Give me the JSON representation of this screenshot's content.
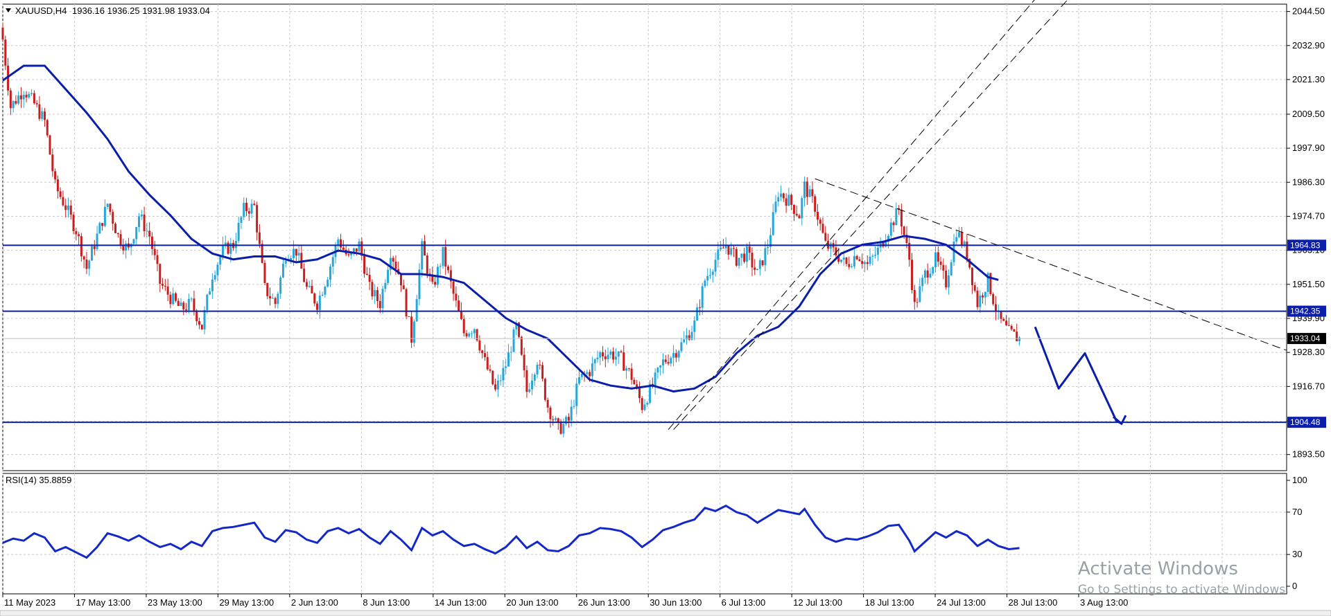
{
  "header": {
    "symbol": "XAUUSD,H4",
    "ohlc": "1936.16 1936.25 1931.98 1933.04",
    "dropdown_icon": "triangle-down-icon"
  },
  "rsi_header": "RSI(14) 35.8859",
  "watermark": {
    "line1": "Activate Windows",
    "line2": "Go to Settings to activate Windows."
  },
  "colors": {
    "bull": "#26a6d9",
    "bear": "#c81e1e",
    "ma": "#0a1eaa",
    "hline": "#0a1eaa",
    "rsi": "#1428c8",
    "grid": "#c8c8c8",
    "current_price_bg": "#000000",
    "level_tag_bg": "#0a1eaa"
  },
  "chart_data": [
    {
      "type": "candlestick",
      "title": "XAUUSD,H4",
      "ylim": [
        1888.0,
        2047.0
      ],
      "y_ticks": [
        "2044.50",
        "2032.90",
        "2021.30",
        "2009.50",
        "1997.90",
        "1986.30",
        "1974.70",
        "1963.10",
        "1951.50",
        "1939.90",
        "1928.30",
        "1916.70",
        "1904.90",
        "1893.50"
      ],
      "x_ticks": [
        "11 May 2023",
        "17 May 13:00",
        "23 May 13:00",
        "29 May 13:00",
        "2 Jun 13:00",
        "8 Jun 13:00",
        "14 Jun 13:00",
        "20 Jun 13:00",
        "26 Jun 13:00",
        "30 Jun 13:00",
        "6 Jul 13:00",
        "12 Jul 13:00",
        "18 Jul 13:00",
        "24 Jul 13:00",
        "28 Jul 13:00",
        "3 Aug 13:00"
      ],
      "close_path": [
        [
          0,
          2035
        ],
        [
          3,
          2012
        ],
        [
          8,
          2018
        ],
        [
          12,
          2013
        ],
        [
          16,
          2007
        ],
        [
          20,
          1985
        ],
        [
          24,
          1978
        ],
        [
          28,
          1970
        ],
        [
          32,
          1957
        ],
        [
          36,
          1968
        ],
        [
          40,
          1979
        ],
        [
          44,
          1968
        ],
        [
          48,
          1963
        ],
        [
          52,
          1975
        ],
        [
          56,
          1968
        ],
        [
          60,
          1952
        ],
        [
          64,
          1947
        ],
        [
          68,
          1943
        ],
        [
          72,
          1945
        ],
        [
          76,
          1937
        ],
        [
          80,
          1955
        ],
        [
          84,
          1963
        ],
        [
          88,
          1965
        ],
        [
          92,
          1977
        ],
        [
          96,
          1978
        ],
        [
          100,
          1950
        ],
        [
          104,
          1945
        ],
        [
          108,
          1962
        ],
        [
          112,
          1963
        ],
        [
          116,
          1950
        ],
        [
          120,
          1945
        ],
        [
          124,
          1955
        ],
        [
          128,
          1967
        ],
        [
          132,
          1960
        ],
        [
          136,
          1965
        ],
        [
          140,
          1950
        ],
        [
          144,
          1945
        ],
        [
          148,
          1963
        ],
        [
          152,
          1953
        ],
        [
          156,
          1933
        ],
        [
          160,
          1964
        ],
        [
          164,
          1950
        ],
        [
          168,
          1962
        ],
        [
          172,
          1948
        ],
        [
          176,
          1935
        ],
        [
          180,
          1937
        ],
        [
          184,
          1925
        ],
        [
          188,
          1915
        ],
        [
          192,
          1924
        ],
        [
          196,
          1937
        ],
        [
          200,
          1915
        ],
        [
          204,
          1926
        ],
        [
          208,
          1910
        ],
        [
          212,
          1902
        ],
        [
          216,
          1905
        ],
        [
          220,
          1919
        ],
        [
          224,
          1922
        ],
        [
          228,
          1928
        ],
        [
          232,
          1928
        ],
        [
          236,
          1926
        ],
        [
          240,
          1920
        ],
        [
          244,
          1910
        ],
        [
          248,
          1917
        ],
        [
          252,
          1925
        ],
        [
          256,
          1928
        ],
        [
          260,
          1932
        ],
        [
          264,
          1938
        ],
        [
          268,
          1953
        ],
        [
          272,
          1960
        ],
        [
          276,
          1965
        ],
        [
          280,
          1960
        ],
        [
          284,
          1962
        ],
        [
          288,
          1955
        ],
        [
          292,
          1965
        ],
        [
          296,
          1983
        ],
        [
          300,
          1980
        ],
        [
          304,
          1975
        ],
        [
          306,
          1985
        ],
        [
          310,
          1978
        ],
        [
          314,
          1965
        ],
        [
          318,
          1962
        ],
        [
          322,
          1958
        ],
        [
          326,
          1962
        ],
        [
          330,
          1958
        ],
        [
          334,
          1963
        ],
        [
          338,
          1970
        ],
        [
          342,
          1977
        ],
        [
          346,
          1960
        ],
        [
          348,
          1944
        ],
        [
          352,
          1955
        ],
        [
          356,
          1960
        ],
        [
          360,
          1952
        ],
        [
          364,
          1970
        ],
        [
          368,
          1962
        ],
        [
          372,
          1945
        ],
        [
          376,
          1953
        ],
        [
          380,
          1940
        ],
        [
          384,
          1935
        ],
        [
          388,
          1933
        ]
      ],
      "moving_average_path": [
        [
          0,
          2021
        ],
        [
          8,
          2026
        ],
        [
          16,
          2026
        ],
        [
          24,
          2018
        ],
        [
          32,
          2010
        ],
        [
          40,
          2001
        ],
        [
          48,
          1990
        ],
        [
          56,
          1982
        ],
        [
          64,
          1975
        ],
        [
          72,
          1967
        ],
        [
          80,
          1962
        ],
        [
          88,
          1960
        ],
        [
          96,
          1961
        ],
        [
          104,
          1961
        ],
        [
          112,
          1959
        ],
        [
          120,
          1960
        ],
        [
          128,
          1963
        ],
        [
          136,
          1962
        ],
        [
          144,
          1960
        ],
        [
          152,
          1955
        ],
        [
          160,
          1955
        ],
        [
          168,
          1954
        ],
        [
          176,
          1952
        ],
        [
          184,
          1946
        ],
        [
          192,
          1940
        ],
        [
          200,
          1936
        ],
        [
          208,
          1933
        ],
        [
          216,
          1926
        ],
        [
          224,
          1919
        ],
        [
          232,
          1917
        ],
        [
          240,
          1916
        ],
        [
          248,
          1917
        ],
        [
          256,
          1915
        ],
        [
          264,
          1916
        ],
        [
          272,
          1920
        ],
        [
          280,
          1928
        ],
        [
          288,
          1934
        ],
        [
          296,
          1937
        ],
        [
          304,
          1944
        ],
        [
          312,
          1955
        ],
        [
          320,
          1962
        ],
        [
          328,
          1965
        ],
        [
          336,
          1966
        ],
        [
          344,
          1968
        ],
        [
          352,
          1967
        ],
        [
          360,
          1965
        ],
        [
          368,
          1960
        ],
        [
          376,
          1954
        ],
        [
          380,
          1953
        ]
      ],
      "horizontal_levels": [
        {
          "value": 1964.83,
          "label": "1964.83"
        },
        {
          "value": 1942.35,
          "label": "1942.35"
        },
        {
          "value": 1904.48,
          "label": "1904.48"
        }
      ],
      "current_price": {
        "value": 1933.04,
        "label": "1933.04"
      },
      "channel_lines": [
        {
          "from": [
            254,
            1902
          ],
          "to": [
            400,
            2055
          ]
        },
        {
          "from": [
            256,
            1902
          ],
          "to": [
            410,
            2052
          ]
        }
      ],
      "trend_line": {
        "from": [
          310,
          1987.5
        ],
        "to": [
          490,
          1929
        ]
      },
      "forecast_path": [
        [
          394,
          1937
        ],
        [
          403,
          1916
        ],
        [
          413,
          1928
        ],
        [
          425,
          1905
        ],
        [
          427,
          1904
        ]
      ]
    },
    {
      "type": "line",
      "title": "RSI(14) 35.8859",
      "ylim": [
        0,
        100
      ],
      "y_ticks": [
        "100",
        "70",
        "30",
        "0"
      ],
      "series": [
        {
          "name": "RSI(14)",
          "values": []
        }
      ],
      "path": [
        [
          0,
          41
        ],
        [
          4,
          45
        ],
        [
          8,
          43
        ],
        [
          12,
          50
        ],
        [
          16,
          46
        ],
        [
          20,
          33
        ],
        [
          24,
          37
        ],
        [
          28,
          32
        ],
        [
          32,
          27
        ],
        [
          36,
          37
        ],
        [
          40,
          50
        ],
        [
          44,
          47
        ],
        [
          48,
          43
        ],
        [
          52,
          48
        ],
        [
          56,
          42
        ],
        [
          60,
          37
        ],
        [
          64,
          40
        ],
        [
          68,
          35
        ],
        [
          72,
          42
        ],
        [
          76,
          38
        ],
        [
          80,
          52
        ],
        [
          84,
          55
        ],
        [
          88,
          56
        ],
        [
          92,
          58
        ],
        [
          96,
          60
        ],
        [
          100,
          46
        ],
        [
          104,
          42
        ],
        [
          108,
          53
        ],
        [
          112,
          51
        ],
        [
          116,
          44
        ],
        [
          120,
          41
        ],
        [
          124,
          52
        ],
        [
          128,
          55
        ],
        [
          132,
          50
        ],
        [
          136,
          54
        ],
        [
          140,
          46
        ],
        [
          144,
          40
        ],
        [
          148,
          52
        ],
        [
          152,
          44
        ],
        [
          156,
          34
        ],
        [
          160,
          55
        ],
        [
          164,
          48
        ],
        [
          168,
          52
        ],
        [
          172,
          44
        ],
        [
          176,
          38
        ],
        [
          180,
          40
        ],
        [
          184,
          35
        ],
        [
          188,
          31
        ],
        [
          192,
          37
        ],
        [
          196,
          47
        ],
        [
          200,
          36
        ],
        [
          204,
          42
        ],
        [
          208,
          34
        ],
        [
          212,
          33
        ],
        [
          216,
          38
        ],
        [
          220,
          48
        ],
        [
          224,
          50
        ],
        [
          228,
          55
        ],
        [
          232,
          54
        ],
        [
          236,
          52
        ],
        [
          240,
          46
        ],
        [
          244,
          37
        ],
        [
          248,
          44
        ],
        [
          252,
          53
        ],
        [
          256,
          56
        ],
        [
          260,
          60
        ],
        [
          264,
          63
        ],
        [
          268,
          74
        ],
        [
          272,
          71
        ],
        [
          276,
          76
        ],
        [
          280,
          70
        ],
        [
          284,
          67
        ],
        [
          288,
          60
        ],
        [
          292,
          66
        ],
        [
          296,
          72
        ],
        [
          300,
          70
        ],
        [
          304,
          68
        ],
        [
          306,
          73
        ],
        [
          310,
          58
        ],
        [
          314,
          46
        ],
        [
          318,
          42
        ],
        [
          322,
          45
        ],
        [
          326,
          44
        ],
        [
          330,
          47
        ],
        [
          334,
          51
        ],
        [
          338,
          57
        ],
        [
          342,
          58
        ],
        [
          346,
          43
        ],
        [
          348,
          33
        ],
        [
          352,
          42
        ],
        [
          356,
          51
        ],
        [
          360,
          46
        ],
        [
          364,
          52
        ],
        [
          368,
          48
        ],
        [
          372,
          38
        ],
        [
          376,
          44
        ],
        [
          380,
          38
        ],
        [
          384,
          35
        ],
        [
          388,
          36
        ]
      ]
    }
  ]
}
